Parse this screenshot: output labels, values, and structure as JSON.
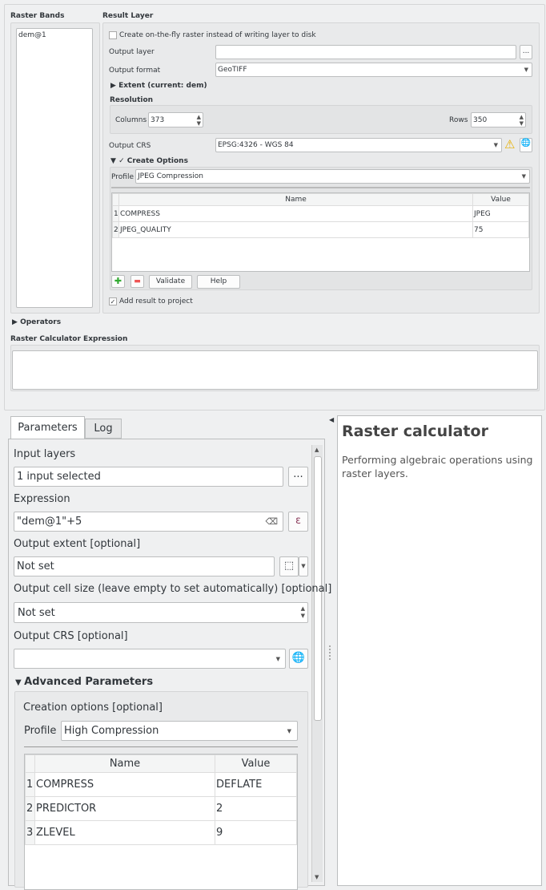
{
  "raster_calc_dialog": {
    "raster_bands_title": "Raster Bands",
    "raster_bands": [
      "dem@1"
    ],
    "result_layer_title": "Result Layer",
    "on_the_fly_label": "Create on-the-fly raster instead of writing layer to disk",
    "on_the_fly_checked": false,
    "output_layer_label": "Output layer",
    "output_layer_value": "",
    "browse_label": "...",
    "output_format_label": "Output format",
    "output_format_value": "GeoTIFF",
    "extent_label": "Extent (current: dem)",
    "resolution_title": "Resolution",
    "columns_label": "Columns",
    "columns_value": "373",
    "rows_label": "Rows",
    "rows_value": "350",
    "output_crs_label": "Output CRS",
    "output_crs_value": "EPSG:4326 - WGS 84",
    "create_options_label": "Create Options",
    "create_options_checked": true,
    "profile_label": "Profile",
    "profile_value": "JPEG Compression",
    "table_headers": [
      "Name",
      "Value"
    ],
    "rows": [
      {
        "n": "1",
        "name": "COMPRESS",
        "value": "JPEG"
      },
      {
        "n": "2",
        "name": "JPEG_QUALITY",
        "value": "75"
      }
    ],
    "validate_label": "Validate",
    "help_label": "Help",
    "add_result_label": "Add result to project",
    "add_result_checked": true,
    "operators_label": "Operators",
    "expression_title": "Raster Calculator Expression",
    "expression_value": ""
  },
  "processing": {
    "tabs": [
      "Parameters",
      "Log"
    ],
    "input_layers_label": "Input layers",
    "input_layers_value": "1 input selected",
    "browse_label": "...",
    "expression_label": "Expression",
    "expression_value": "\"dem@1\"+5",
    "epsilon": "ε",
    "output_extent_label": "Output extent [optional]",
    "output_extent_value": "Not set",
    "cell_size_label": "Output cell size (leave empty to set automatically) [optional]",
    "cell_size_value": "Not set",
    "output_crs_label": "Output CRS [optional]",
    "output_crs_value": "",
    "advanced_label": "Advanced Parameters",
    "creation_options_label": "Creation options [optional]",
    "profile_label": "Profile",
    "profile_value": "High Compression",
    "table_headers": [
      "Name",
      "Value"
    ],
    "rows": [
      {
        "n": "1",
        "name": "COMPRESS",
        "value": "DEFLATE"
      },
      {
        "n": "2",
        "name": "PREDICTOR",
        "value": "2"
      },
      {
        "n": "3",
        "name": "ZLEVEL",
        "value": "9"
      }
    ]
  },
  "help_panel": {
    "title": "Raster calculator",
    "description": "Performing algebraic operations using raster layers."
  }
}
